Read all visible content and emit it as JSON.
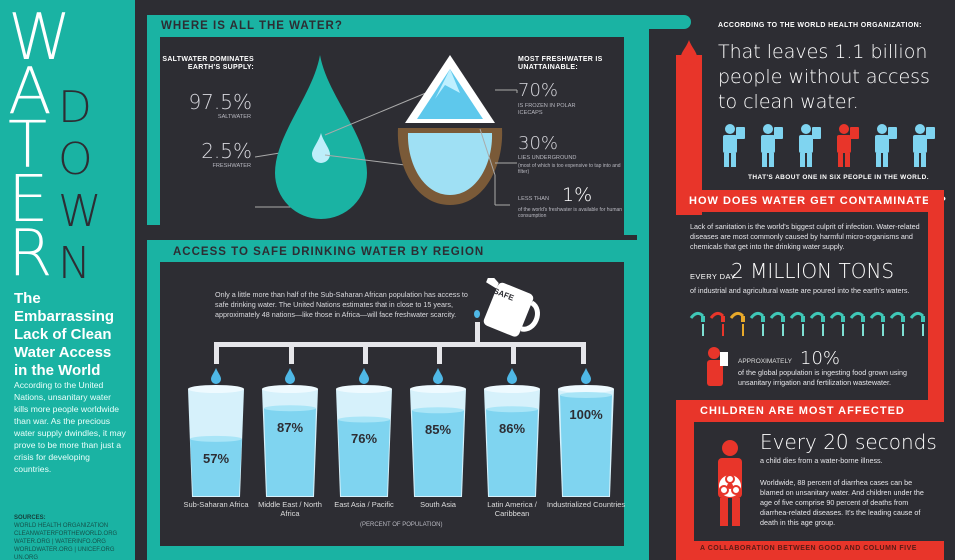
{
  "left": {
    "title_water": [
      "W",
      "A",
      "T",
      "E",
      "R"
    ],
    "title_down": [
      "D",
      "O",
      "W",
      "N"
    ],
    "subtitle": "The Embarrassing Lack of Clean Water Access in the World",
    "intro": "According to the United Nations, unsanitary water kills more people worldwide than war. As the precious water supply dwindles, it may prove to be more than just a crisis for developing countries.",
    "sources_label": "SOURCES:",
    "sources": "WORLD HEALTH ORGANIZATION\nCLEANWATERFORTHEWORLD.ORG\nWATER.ORG | WATERINFO.ORG\nWORLDWATER.ORG | UNICEF.ORG\nUN.ORG"
  },
  "where": {
    "title": "WHERE IS ALL THE WATER?",
    "left_heading": "SALTWATER DOMINATES EARTH'S SUPPLY:",
    "salt_pct": "97.5%",
    "salt_label": "SALTWATER",
    "fresh_pct": "2.5%",
    "fresh_label": "FRESHWATER",
    "right_heading": "MOST FRESHWATER IS UNATTAINABLE:",
    "frozen_pct": "70%",
    "frozen_label": "IS FROZEN IN POLAR ICECAPS",
    "under_pct": "30%",
    "under_label": "LIES UNDERGROUND",
    "under_note": "(most of which is too expensive to tap into and filter)",
    "less_than": "LESS THAN",
    "one_pct": "1%",
    "one_note": "of the world's freshwater is available for human consumption"
  },
  "access": {
    "title": "ACCESS TO SAFE DRINKING WATER BY REGION",
    "intro": "Only a little more than half of the Sub-Saharan African population has access to safe drinking water. The United Nations estimates that in close to 15 years, approximately 48 nations—like those in Africa—will face freshwater scarcity.",
    "jug_label": "SAFE",
    "footnote": "(PERCENT OF POPULATION)"
  },
  "chart_data": {
    "type": "bar",
    "categories": [
      "Sub-Saharan Africa",
      "Middle East / North Africa",
      "East Asia / Pacific",
      "South Asia",
      "Latin America / Caribbean",
      "Industrialized Countries"
    ],
    "values": [
      57,
      87,
      76,
      85,
      86,
      100
    ],
    "value_labels": [
      "57%",
      "87%",
      "76%",
      "85%",
      "86%",
      "100%"
    ],
    "xlabel": "(PERCENT OF POPULATION)",
    "ylim": [
      0,
      100
    ]
  },
  "who": {
    "label": "ACCORDING TO THE WORLD HEALTH ORGANIZATION:",
    "headline": "That leaves 1.1 billion people without access to clean water.",
    "people_count": 6,
    "highlight_index": 3,
    "caption": "THAT'S ABOUT ONE IN SIX PEOPLE IN THE WORLD."
  },
  "contam": {
    "title": "HOW DOES WATER GET CONTAMINATED?",
    "para": "Lack of sanitation is the world's biggest culprit of infection. Water-related diseases are most commonly caused by harmful micro-organisms and chemicals that get into the drinking water supply.",
    "every_day": "EVERY DAY",
    "tons": "2 MILLION TONS",
    "tons_note": "of industrial and agricultural waste are poured into the earth's waters.",
    "faucet_count": 12,
    "approx": "APPROXIMATELY",
    "ten_pct": "10%",
    "ten_note": "of the global population is ingesting food grown using unsanitary irrigation and fertilization wastewater."
  },
  "children": {
    "title": "CHILDREN ARE MOST AFFECTED",
    "every20": "Every 20 seconds",
    "every20_note": "a child dies from a water-borne illness.",
    "para": "Worldwide, 88 percent of diarrhea cases can be blamed on unsanitary water. And children under the age of five comprise 90 percent of deaths from diarrhea-related diseases. It's the leading cause of death in this age group."
  },
  "footer": "A COLLABORATION BETWEEN GOOD AND COLUMN FIVE",
  "colors": {
    "teal": "#1ab3a3",
    "red": "#e8352a",
    "dark": "#2d2d33",
    "light_blue": "#7fd4f0",
    "blue": "#4fb8e6"
  }
}
